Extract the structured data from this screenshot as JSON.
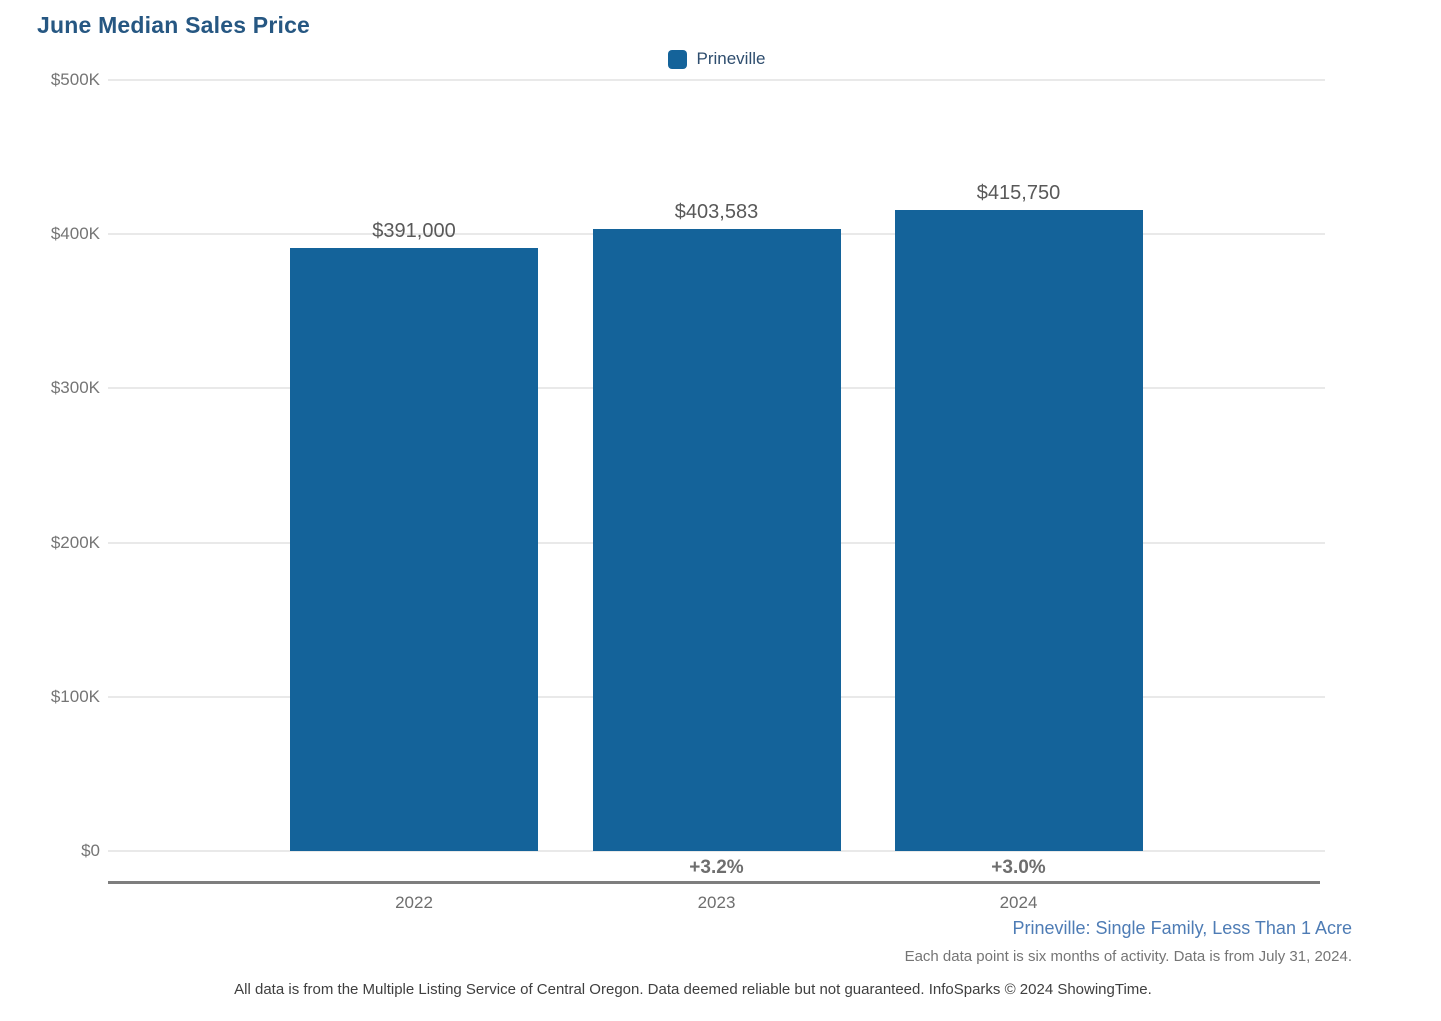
{
  "title": "June Median Sales Price",
  "legend": {
    "label": "Prineville",
    "color": "#14639a"
  },
  "chart_data": {
    "type": "bar",
    "title": "June Median Sales Price",
    "categories": [
      "2022",
      "2023",
      "2024"
    ],
    "series": [
      {
        "name": "Prineville",
        "values": [
          391000,
          403583,
          415750
        ]
      }
    ],
    "value_labels": [
      "$391,000",
      "$403,583",
      "$415,750"
    ],
    "pct_change_labels": [
      "",
      "+3.2%",
      "+3.0%"
    ],
    "bar_color": "#14639a",
    "ylim": [
      0,
      500000
    ],
    "yticks": [
      {
        "value": 0,
        "label": "$0"
      },
      {
        "value": 100000,
        "label": "$100K"
      },
      {
        "value": 200000,
        "label": "$200K"
      },
      {
        "value": 300000,
        "label": "$300K"
      },
      {
        "value": 400000,
        "label": "$400K"
      },
      {
        "value": 500000,
        "label": "$500K"
      }
    ],
    "grid": true,
    "legend_position": "top-center"
  },
  "footer": {
    "series_note": "Prineville: Single Family, Less Than 1 Acre",
    "activity_note": "Each data point is six months of activity. Data is from July 31, 2024.",
    "disclaimer": "All data is from the Multiple Listing Service of Central Oregon. Data deemed reliable but not guaranteed. InfoSparks © 2024 ShowingTime."
  }
}
